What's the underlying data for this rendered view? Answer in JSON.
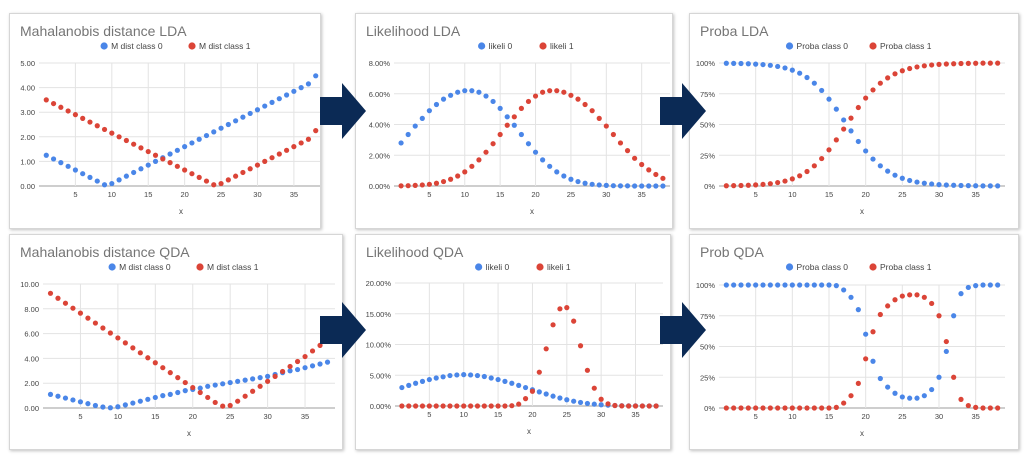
{
  "colors": {
    "class0": "#4a86e8",
    "class1": "#db4437",
    "arrow": "#0b2a55",
    "grid": "#e3e3e3",
    "text": "#444444",
    "title": "#757575"
  },
  "chart_data": [
    {
      "type": "scatter",
      "title": "Mahalanobis distance LDA",
      "xlabel": "x",
      "ylabel": "",
      "xlim": [
        0,
        39
      ],
      "ylim": [
        0,
        5
      ],
      "xticks": [
        5,
        10,
        15,
        20,
        25,
        30,
        35
      ],
      "yticks": [
        0,
        1,
        2,
        3,
        4,
        5
      ],
      "ytick_labels": [
        "0.00",
        "1.00",
        "2.00",
        "3.00",
        "4.00",
        "5.00"
      ],
      "legend_position": "top",
      "x": [
        1,
        2,
        3,
        4,
        5,
        6,
        7,
        8,
        9,
        10,
        11,
        12,
        13,
        14,
        15,
        16,
        17,
        18,
        19,
        20,
        21,
        22,
        23,
        24,
        25,
        26,
        27,
        28,
        29,
        30,
        31,
        32,
        33,
        34,
        35,
        36,
        37,
        38
      ],
      "series": [
        {
          "name": "M dist class 0",
          "values": [
            1.25,
            1.1,
            0.95,
            0.8,
            0.65,
            0.5,
            0.35,
            0.2,
            0.05,
            0.1,
            0.25,
            0.4,
            0.55,
            0.7,
            0.85,
            1.0,
            1.15,
            1.3,
            1.45,
            1.6,
            1.75,
            1.9,
            2.05,
            2.2,
            2.35,
            2.5,
            2.65,
            2.8,
            2.95,
            3.1,
            3.25,
            3.4,
            3.55,
            3.7,
            3.85,
            4.0,
            4.15,
            4.48
          ]
        },
        {
          "name": "M dist class 1",
          "values": [
            3.5,
            3.35,
            3.2,
            3.05,
            2.9,
            2.75,
            2.6,
            2.45,
            2.3,
            2.15,
            2.0,
            1.85,
            1.7,
            1.55,
            1.4,
            1.25,
            1.1,
            0.95,
            0.8,
            0.65,
            0.5,
            0.35,
            0.2,
            0.05,
            0.1,
            0.25,
            0.4,
            0.55,
            0.7,
            0.85,
            1.0,
            1.15,
            1.3,
            1.45,
            1.6,
            1.75,
            1.9,
            2.25
          ]
        }
      ]
    },
    {
      "type": "scatter",
      "title": "Likelihood LDA",
      "xlabel": "x",
      "ylabel": "",
      "xlim": [
        0,
        39
      ],
      "ylim": [
        0,
        8
      ],
      "xticks": [
        5,
        10,
        15,
        20,
        25,
        30,
        35
      ],
      "yticks": [
        0,
        2,
        4,
        6,
        8
      ],
      "ytick_labels": [
        "0.00%",
        "2.00%",
        "4.00%",
        "6.00%",
        "8.00%"
      ],
      "legend_position": "top",
      "x": [
        1,
        2,
        3,
        4,
        5,
        6,
        7,
        8,
        9,
        10,
        11,
        12,
        13,
        14,
        15,
        16,
        17,
        18,
        19,
        20,
        21,
        22,
        23,
        24,
        25,
        26,
        27,
        28,
        29,
        30,
        31,
        32,
        33,
        34,
        35,
        36,
        37,
        38
      ],
      "series": [
        {
          "name": "likeli 0",
          "values": [
            2.8,
            3.35,
            3.9,
            4.4,
            4.9,
            5.3,
            5.65,
            5.9,
            6.1,
            6.2,
            6.2,
            6.1,
            5.85,
            5.5,
            5.05,
            4.5,
            3.95,
            3.35,
            2.75,
            2.2,
            1.7,
            1.28,
            0.92,
            0.65,
            0.44,
            0.29,
            0.18,
            0.11,
            0.07,
            0.04,
            0.02,
            0.01,
            0.01,
            0.0,
            0.0,
            0.0,
            0.0,
            0.0
          ]
        },
        {
          "name": "likeli 1",
          "values": [
            0.01,
            0.02,
            0.04,
            0.07,
            0.11,
            0.18,
            0.29,
            0.44,
            0.65,
            0.92,
            1.28,
            1.7,
            2.2,
            2.75,
            3.35,
            3.95,
            4.5,
            5.05,
            5.5,
            5.85,
            6.1,
            6.2,
            6.2,
            6.1,
            5.9,
            5.65,
            5.3,
            4.9,
            4.4,
            3.9,
            3.35,
            2.8,
            2.3,
            1.8,
            1.4,
            1.05,
            0.75,
            0.5
          ]
        }
      ]
    },
    {
      "type": "scatter",
      "title": "Proba LDA",
      "xlabel": "x",
      "ylabel": "",
      "xlim": [
        0,
        39
      ],
      "ylim": [
        0,
        100
      ],
      "xticks": [
        5,
        10,
        15,
        20,
        25,
        30,
        35
      ],
      "yticks": [
        0,
        25,
        50,
        75,
        100
      ],
      "ytick_labels": [
        "0%",
        "25%",
        "50%",
        "75%",
        "100%"
      ],
      "legend_position": "top",
      "x": [
        1,
        2,
        3,
        4,
        5,
        6,
        7,
        8,
        9,
        10,
        11,
        12,
        13,
        14,
        15,
        16,
        17,
        18,
        19,
        20,
        21,
        22,
        23,
        24,
        25,
        26,
        27,
        28,
        29,
        30,
        31,
        32,
        33,
        34,
        35,
        36,
        37,
        38
      ],
      "series": [
        {
          "name": "Proba class 0",
          "values": [
            99.8,
            99.7,
            99.6,
            99.4,
            99.1,
            98.7,
            98.1,
            97.2,
            96.0,
            94.2,
            91.7,
            88.2,
            83.6,
            77.7,
            70.6,
            62.5,
            53.7,
            44.8,
            36.2,
            28.5,
            21.9,
            16.4,
            12.1,
            8.8,
            6.3,
            4.5,
            3.2,
            2.3,
            1.6,
            1.1,
            0.8,
            0.6,
            0.4,
            0.3,
            0.2,
            0.1,
            0.1,
            0.1
          ]
        },
        {
          "name": "Proba class 1",
          "values": [
            0.2,
            0.3,
            0.4,
            0.6,
            0.9,
            1.3,
            1.9,
            2.8,
            4.0,
            5.8,
            8.3,
            11.8,
            16.4,
            22.3,
            29.4,
            37.5,
            46.3,
            55.2,
            63.8,
            71.5,
            78.1,
            83.6,
            87.9,
            91.2,
            93.7,
            95.5,
            96.8,
            97.7,
            98.4,
            98.9,
            99.2,
            99.4,
            99.6,
            99.7,
            99.8,
            99.9,
            99.9,
            99.9
          ]
        }
      ]
    },
    {
      "type": "scatter",
      "title": "Mahalanobis distance QDA",
      "xlabel": "x",
      "ylabel": "",
      "xlim": [
        0,
        39
      ],
      "ylim": [
        0,
        10
      ],
      "xticks": [
        5,
        10,
        15,
        20,
        25,
        30,
        35
      ],
      "yticks": [
        0,
        2,
        4,
        6,
        8,
        10
      ],
      "ytick_labels": [
        "0.00",
        "2.00",
        "4.00",
        "6.00",
        "8.00",
        "10.00"
      ],
      "legend_position": "top",
      "x": [
        1,
        2,
        3,
        4,
        5,
        6,
        7,
        8,
        9,
        10,
        11,
        12,
        13,
        14,
        15,
        16,
        17,
        18,
        19,
        20,
        21,
        22,
        23,
        24,
        25,
        26,
        27,
        28,
        29,
        30,
        31,
        32,
        33,
        34,
        35,
        36,
        37,
        38
      ],
      "series": [
        {
          "name": "M dist class 0",
          "values": [
            1.1,
            0.95,
            0.8,
            0.65,
            0.5,
            0.35,
            0.2,
            0.08,
            0.02,
            0.1,
            0.25,
            0.4,
            0.55,
            0.7,
            0.85,
            1.0,
            1.1,
            1.25,
            1.4,
            1.5,
            1.6,
            1.75,
            1.85,
            1.95,
            2.05,
            2.15,
            2.25,
            2.35,
            2.45,
            2.55,
            2.7,
            2.85,
            3.0,
            3.1,
            3.25,
            3.4,
            3.55,
            3.7
          ]
        },
        {
          "name": "M dist class 1",
          "values": [
            9.25,
            8.85,
            8.45,
            8.05,
            7.65,
            7.25,
            6.85,
            6.45,
            6.05,
            5.65,
            5.25,
            4.85,
            4.45,
            4.05,
            3.65,
            3.25,
            2.85,
            2.45,
            2.05,
            1.65,
            1.25,
            0.85,
            0.45,
            0.15,
            0.2,
            0.55,
            0.95,
            1.35,
            1.75,
            2.15,
            2.55,
            2.95,
            3.35,
            3.75,
            4.15,
            4.6,
            5.05,
            5.5
          ]
        }
      ]
    },
    {
      "type": "scatter",
      "title": "Likelihood QDA",
      "xlabel": "x",
      "ylabel": "",
      "xlim": [
        0,
        39
      ],
      "ylim": [
        0,
        20
      ],
      "xticks": [
        5,
        10,
        15,
        20,
        25,
        30,
        35
      ],
      "yticks": [
        0,
        5,
        10,
        15,
        20
      ],
      "ytick_labels": [
        "0.00%",
        "5.00%",
        "10.00%",
        "15.00%",
        "20.00%"
      ],
      "legend_position": "top",
      "x": [
        1,
        2,
        3,
        4,
        5,
        6,
        7,
        8,
        9,
        10,
        11,
        12,
        13,
        14,
        15,
        16,
        17,
        18,
        19,
        20,
        21,
        22,
        23,
        24,
        25,
        26,
        27,
        28,
        29,
        30,
        31,
        32,
        33,
        34,
        35,
        36,
        37,
        38
      ],
      "series": [
        {
          "name": "likeli 0",
          "values": [
            3.0,
            3.35,
            3.7,
            4.0,
            4.3,
            4.55,
            4.75,
            4.95,
            5.05,
            5.1,
            5.05,
            4.95,
            4.8,
            4.55,
            4.3,
            4.0,
            3.7,
            3.35,
            3.0,
            2.65,
            2.3,
            1.95,
            1.6,
            1.3,
            1.02,
            0.78,
            0.58,
            0.42,
            0.3,
            0.2,
            0.13,
            0.08,
            0.05,
            0.03,
            0.02,
            0.01,
            0.01,
            0.0
          ]
        },
        {
          "name": "likeli 1",
          "values": [
            0,
            0,
            0,
            0,
            0,
            0,
            0,
            0,
            0,
            0,
            0,
            0,
            0,
            0,
            0,
            0,
            0.05,
            0.3,
            1.2,
            2.4,
            5.5,
            9.3,
            13.2,
            15.8,
            16.0,
            13.8,
            9.8,
            5.8,
            2.9,
            1.1,
            0.35,
            0.08,
            0.02,
            0,
            0,
            0,
            0,
            0
          ]
        }
      ]
    },
    {
      "type": "scatter",
      "title": "Prob QDA",
      "xlabel": "x",
      "ylabel": "",
      "xlim": [
        0,
        39
      ],
      "ylim": [
        0,
        100
      ],
      "xticks": [
        5,
        10,
        15,
        20,
        25,
        30,
        35
      ],
      "yticks": [
        0,
        25,
        50,
        75,
        100
      ],
      "ytick_labels": [
        "0%",
        "25%",
        "50%",
        "75%",
        "100%"
      ],
      "legend_position": "top",
      "x": [
        1,
        2,
        3,
        4,
        5,
        6,
        7,
        8,
        9,
        10,
        11,
        12,
        13,
        14,
        15,
        16,
        17,
        18,
        19,
        20,
        21,
        22,
        23,
        24,
        25,
        26,
        27,
        28,
        29,
        30,
        31,
        32,
        33,
        34,
        35,
        36,
        37,
        38
      ],
      "series": [
        {
          "name": "Proba class 0",
          "values": [
            100,
            100,
            100,
            100,
            100,
            100,
            100,
            100,
            100,
            100,
            100,
            100,
            100,
            100,
            100,
            99.5,
            96,
            90,
            80,
            60,
            38,
            24,
            17,
            12,
            9,
            8,
            8,
            10,
            15,
            25,
            46,
            75,
            93,
            98,
            99.5,
            100,
            100,
            100
          ]
        },
        {
          "name": "Proba class 1",
          "values": [
            0,
            0,
            0,
            0,
            0,
            0,
            0,
            0,
            0,
            0,
            0,
            0,
            0,
            0,
            0,
            0.5,
            4,
            10,
            20,
            40,
            62,
            76,
            83,
            88,
            91,
            92,
            92,
            90,
            85,
            75,
            54,
            25,
            7,
            2,
            0.5,
            0,
            0,
            0
          ]
        }
      ]
    }
  ]
}
